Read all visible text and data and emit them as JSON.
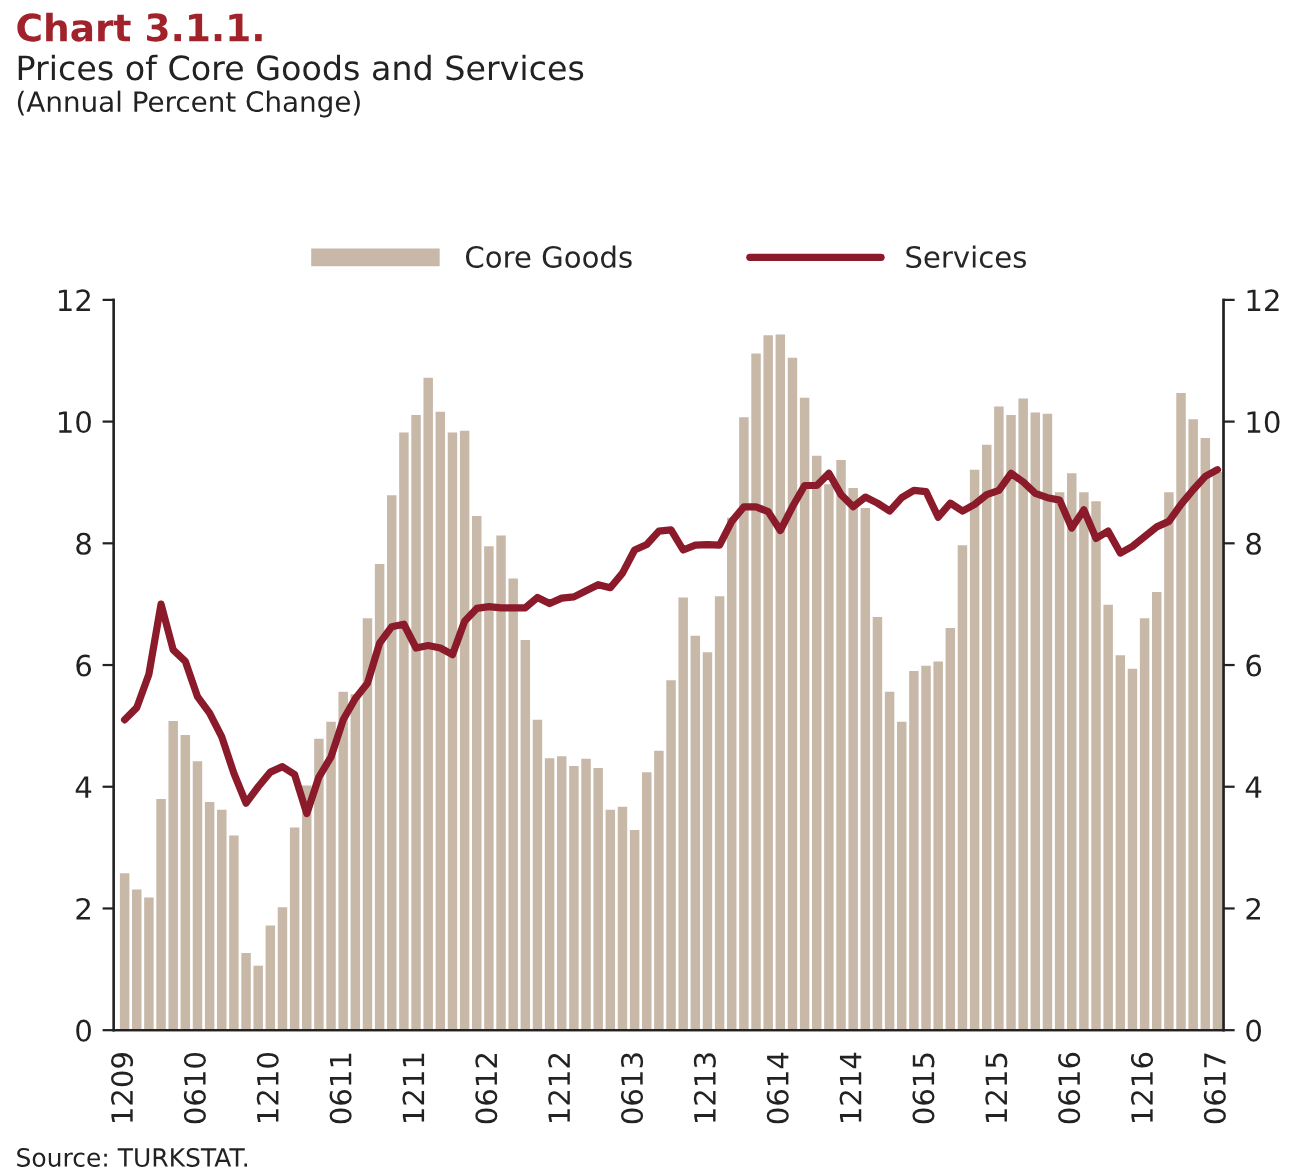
{
  "chart_data": {
    "type": "bar",
    "title": "Chart 3.1.1.",
    "subtitle": "Prices of Core Goods and Services",
    "annotations": [
      "(Annual Percent Change)",
      "Source: TURKSTAT."
    ],
    "categories": [
      "1209",
      null,
      null,
      null,
      null,
      null,
      "0610",
      null,
      null,
      null,
      null,
      null,
      "1210",
      null,
      null,
      null,
      null,
      null,
      "0611",
      null,
      null,
      null,
      null,
      null,
      "1211",
      null,
      null,
      null,
      null,
      null,
      "0612",
      null,
      null,
      null,
      null,
      null,
      "1212",
      null,
      null,
      null,
      null,
      null,
      "0613",
      null,
      null,
      null,
      null,
      null,
      "1213",
      null,
      null,
      null,
      null,
      null,
      "0614",
      null,
      null,
      null,
      null,
      null,
      "1214",
      null,
      null,
      null,
      null,
      null,
      "0615",
      null,
      null,
      null,
      null,
      null,
      "1215",
      null,
      null,
      null,
      null,
      null,
      "0616",
      null,
      null,
      null,
      null,
      null,
      "1216",
      null,
      null,
      null,
      null,
      null,
      "0617"
    ],
    "series": [
      {
        "name": "Core Goods",
        "color": "#c8b8a8",
        "values": [
          2.58,
          2.31,
          2.18,
          3.8,
          5.08,
          4.85,
          4.42,
          3.75,
          3.62,
          3.2,
          1.27,
          1.06,
          1.72,
          2.02,
          3.33,
          4.02,
          4.79,
          5.07,
          5.56,
          5.52,
          6.77,
          7.66,
          8.79,
          9.82,
          10.11,
          10.72,
          10.16,
          9.82,
          9.85,
          8.45,
          7.95,
          8.13,
          7.42,
          6.41,
          5.1,
          4.47,
          4.5,
          4.34,
          4.46,
          4.31,
          3.62,
          3.67,
          3.29,
          4.24,
          4.59,
          5.75,
          7.11,
          6.48,
          6.21,
          7.13,
          8.42,
          10.07,
          11.12,
          11.42,
          11.43,
          11.05,
          10.39,
          9.44,
          8.97,
          9.37,
          8.91,
          8.58,
          6.79,
          5.56,
          5.07,
          5.9,
          5.99,
          6.06,
          6.61,
          7.97,
          9.21,
          9.62,
          10.25,
          10.11,
          10.38,
          10.15,
          10.13,
          8.84,
          9.15,
          8.84,
          8.69,
          6.99,
          6.16,
          5.94,
          6.77,
          7.2,
          8.84,
          10.47,
          10.04,
          9.73,
          9.17
        ]
      },
      {
        "name": "Services",
        "type": "line",
        "color": "#8b1a2b",
        "values": [
          5.1,
          5.3,
          5.85,
          7.0,
          6.25,
          6.06,
          5.48,
          5.21,
          4.82,
          4.22,
          3.73,
          4.0,
          4.24,
          4.33,
          4.2,
          3.56,
          4.16,
          4.49,
          5.1,
          5.45,
          5.7,
          6.36,
          6.63,
          6.67,
          6.28,
          6.32,
          6.28,
          6.17,
          6.72,
          6.93,
          6.96,
          6.94,
          6.94,
          6.94,
          7.11,
          7.01,
          7.1,
          7.12,
          7.22,
          7.32,
          7.27,
          7.51,
          7.89,
          7.98,
          8.2,
          8.22,
          7.89,
          7.97,
          7.98,
          7.97,
          8.36,
          8.6,
          8.6,
          8.52,
          8.21,
          8.6,
          8.95,
          8.95,
          9.15,
          8.8,
          8.6,
          8.76,
          8.66,
          8.53,
          8.75,
          8.87,
          8.85,
          8.43,
          8.66,
          8.53,
          8.64,
          8.8,
          8.87,
          9.15,
          9.01,
          8.82,
          8.75,
          8.71,
          8.25,
          8.55,
          8.08,
          8.2,
          7.84,
          7.95,
          8.11,
          8.27,
          8.36,
          8.64,
          8.88,
          9.1,
          9.21
        ]
      }
    ],
    "ylim": [
      0,
      12
    ],
    "yticks": [
      0,
      2,
      4,
      6,
      8,
      10,
      12
    ],
    "y2lim": [
      0,
      12
    ],
    "y2ticks": [
      0,
      2,
      4,
      6,
      8,
      10,
      12
    ],
    "legend": "top",
    "grid": false,
    "line_style": "solid"
  }
}
